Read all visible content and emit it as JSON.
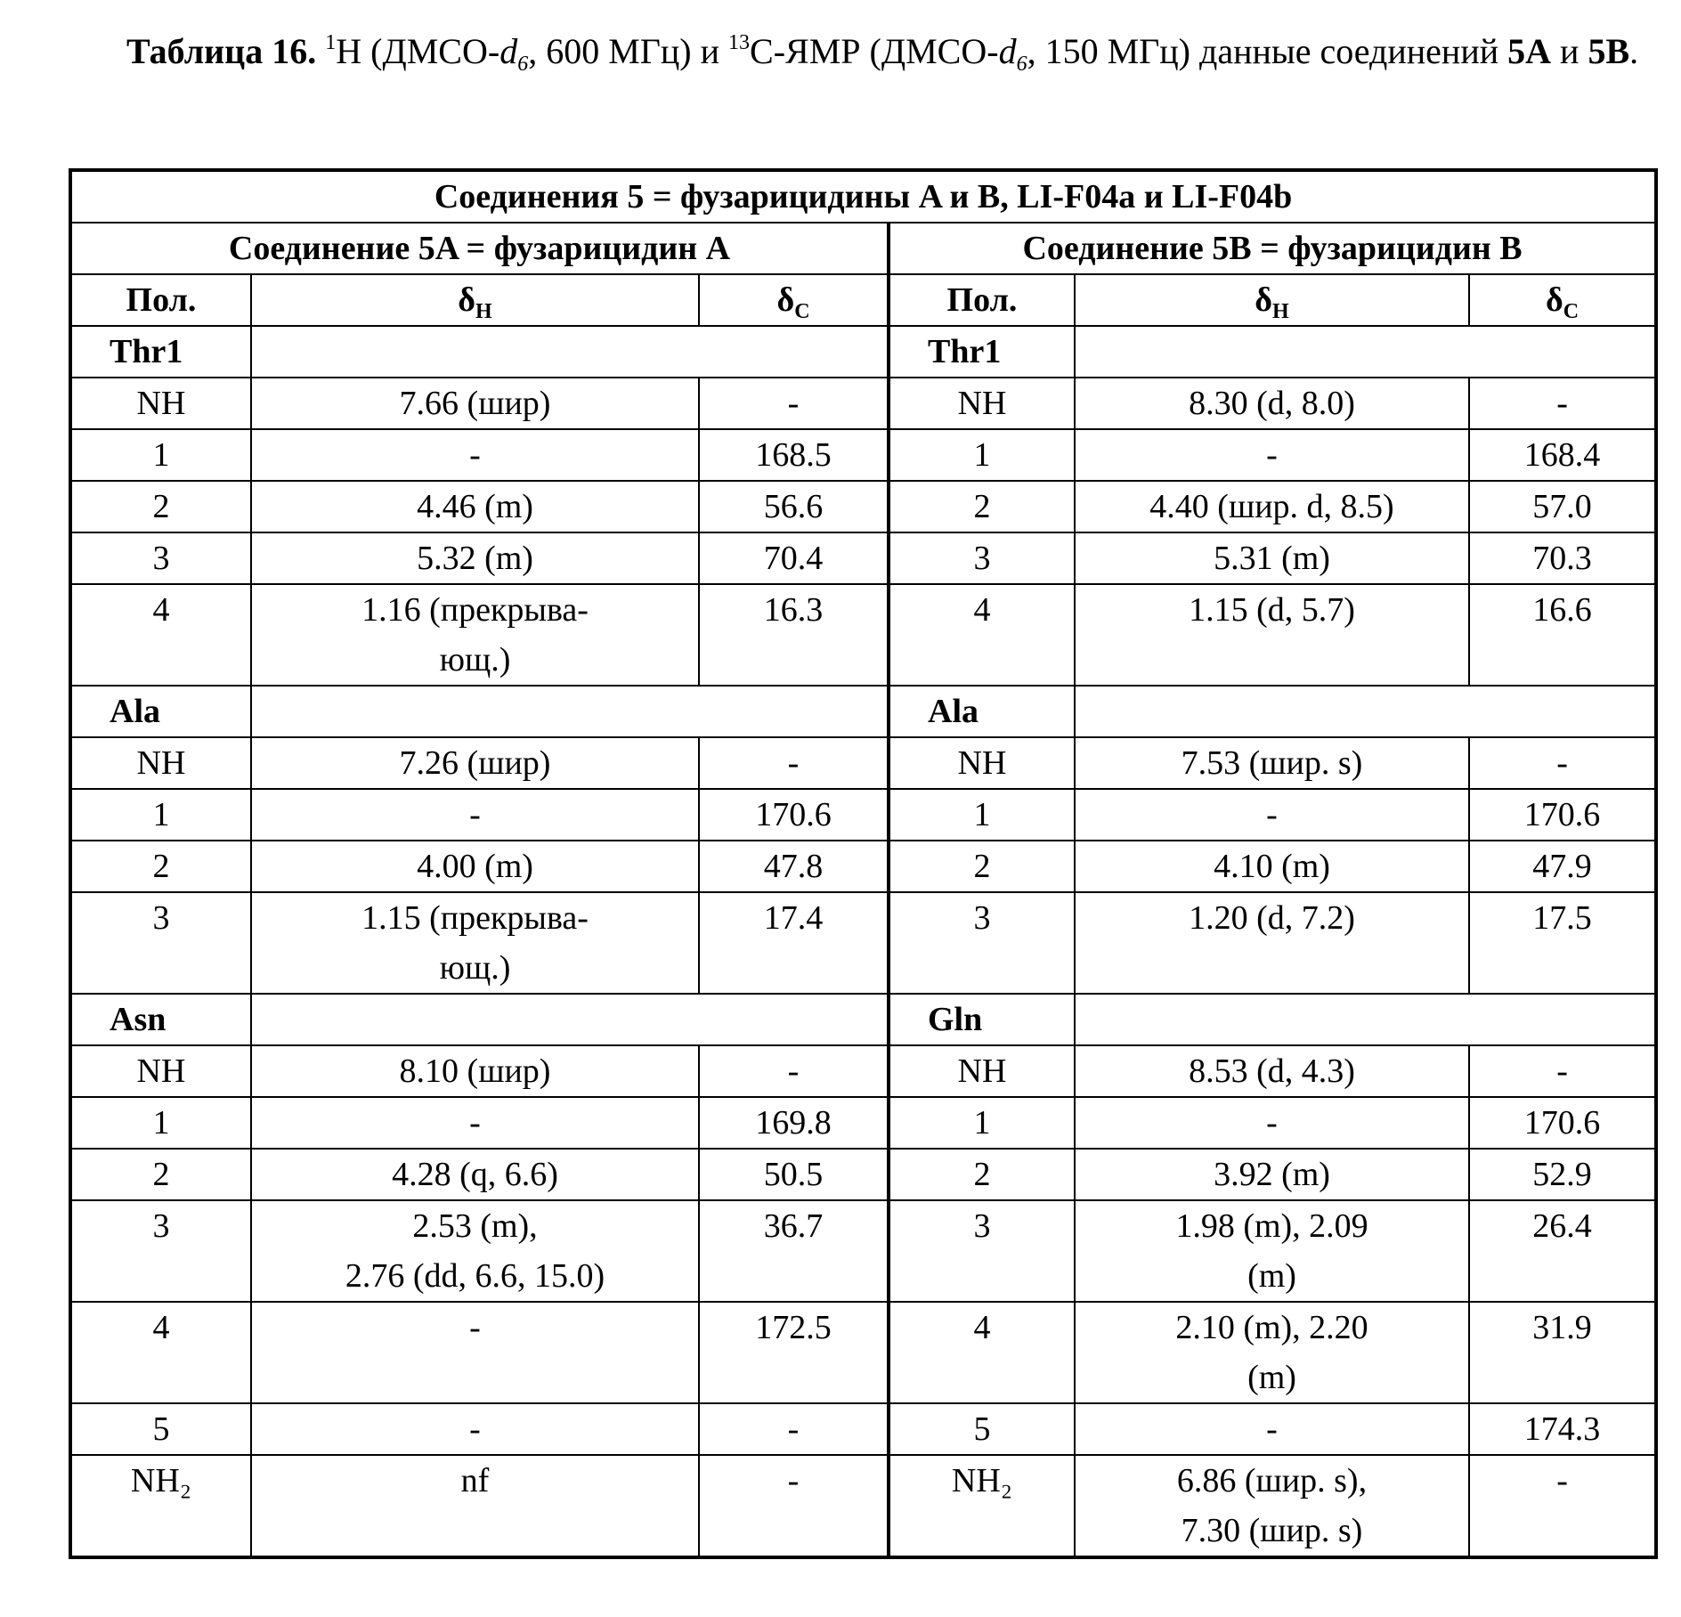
{
  "caption": {
    "parts": [
      "Таблица 16.",
      "1",
      "H (ДМСО-",
      "d",
      "6",
      ", 600 МГц) и ",
      "13",
      "C-ЯМР (ДМСО-",
      "d",
      "6",
      ", 150 МГц) данные соединений ",
      "5A",
      " и ",
      "5B",
      "."
    ]
  },
  "table": {
    "title": "Соединения 5 = фузарицидины A и B, LI-F04a и LI-F04b",
    "compounds": [
      "Соединение 5A = фузарицидин A",
      "Соединение 5B = фузарицидин B"
    ],
    "col_headers": [
      {
        "text": "Пол."
      },
      {
        "text": "δ",
        "sub": "H"
      },
      {
        "text": "δ",
        "sub": "C"
      },
      {
        "text": "Пол."
      },
      {
        "text": "δ",
        "sub": "H"
      },
      {
        "text": "δ",
        "sub": "C"
      }
    ],
    "sections": [
      {
        "residues": [
          "Thr1",
          "Thr1"
        ],
        "rows": [
          [
            "NH",
            "7.66 (шир)",
            "-",
            "NH",
            "8.30 (d, 8.0)",
            "-"
          ],
          [
            "1",
            "-",
            "168.5",
            "1",
            "-",
            "168.4"
          ],
          [
            "2",
            "4.46 (m)",
            "56.6",
            "2",
            "4.40 (шир. d, 8.5)",
            "57.0"
          ],
          [
            "3",
            "5.32 (m)",
            "70.4",
            "3",
            "5.31 (m)",
            "70.3"
          ],
          [
            "4",
            "1.16 (прекрыва-\nющ.)",
            "16.3",
            "4",
            "1.15 (d, 5.7)",
            "16.6"
          ]
        ]
      },
      {
        "residues": [
          "Ala",
          "Ala"
        ],
        "rows": [
          [
            "NH",
            "7.26 (шир)",
            "-",
            "NH",
            "7.53 (шир. s)",
            "-"
          ],
          [
            "1",
            "-",
            "170.6",
            "1",
            "-",
            "170.6"
          ],
          [
            "2",
            "4.00 (m)",
            "47.8",
            "2",
            "4.10 (m)",
            "47.9"
          ],
          [
            "3",
            "1.15 (прекрыва-\nющ.)",
            "17.4",
            "3",
            "1.20 (d, 7.2)",
            "17.5"
          ]
        ]
      },
      {
        "residues": [
          "Asn",
          "Gln"
        ],
        "rows": [
          [
            "NH",
            "8.10 (шир)",
            "-",
            "NH",
            "8.53 (d, 4.3)",
            "-"
          ],
          [
            "1",
            "-",
            "169.8",
            "1",
            "-",
            "170.6"
          ],
          [
            "2",
            "4.28 (q, 6.6)",
            "50.5",
            "2",
            "3.92 (m)",
            "52.9"
          ],
          [
            "3",
            "2.53 (m),\n2.76 (dd, 6.6, 15.0)",
            "36.7",
            "3",
            "1.98 (m), 2.09\n(m)",
            "26.4"
          ],
          [
            "4",
            "-",
            "172.5",
            "4",
            "2.10 (m), 2.20\n(m)",
            "31.9"
          ],
          [
            "5",
            "-",
            "-",
            "5",
            "-",
            "174.3"
          ],
          [
            "NH₂",
            "nf",
            "-",
            "NH₂",
            "6.86 (шир. s),\n7.30 (шир. s)",
            "-"
          ]
        ]
      }
    ]
  }
}
